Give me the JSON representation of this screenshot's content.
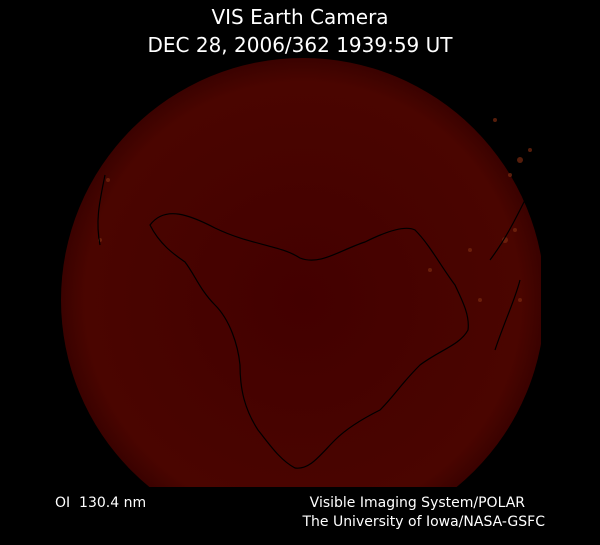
{
  "header": {
    "title": "VIS Earth Camera",
    "timestamp": "DEC 28, 2006/362 1939:59 UT"
  },
  "footer": {
    "filter": "OI  130.4 nm",
    "credits": [
      "Visible Imaging System/POLAR",
      "The University of Iowa/NASA-GSFC"
    ]
  }
}
